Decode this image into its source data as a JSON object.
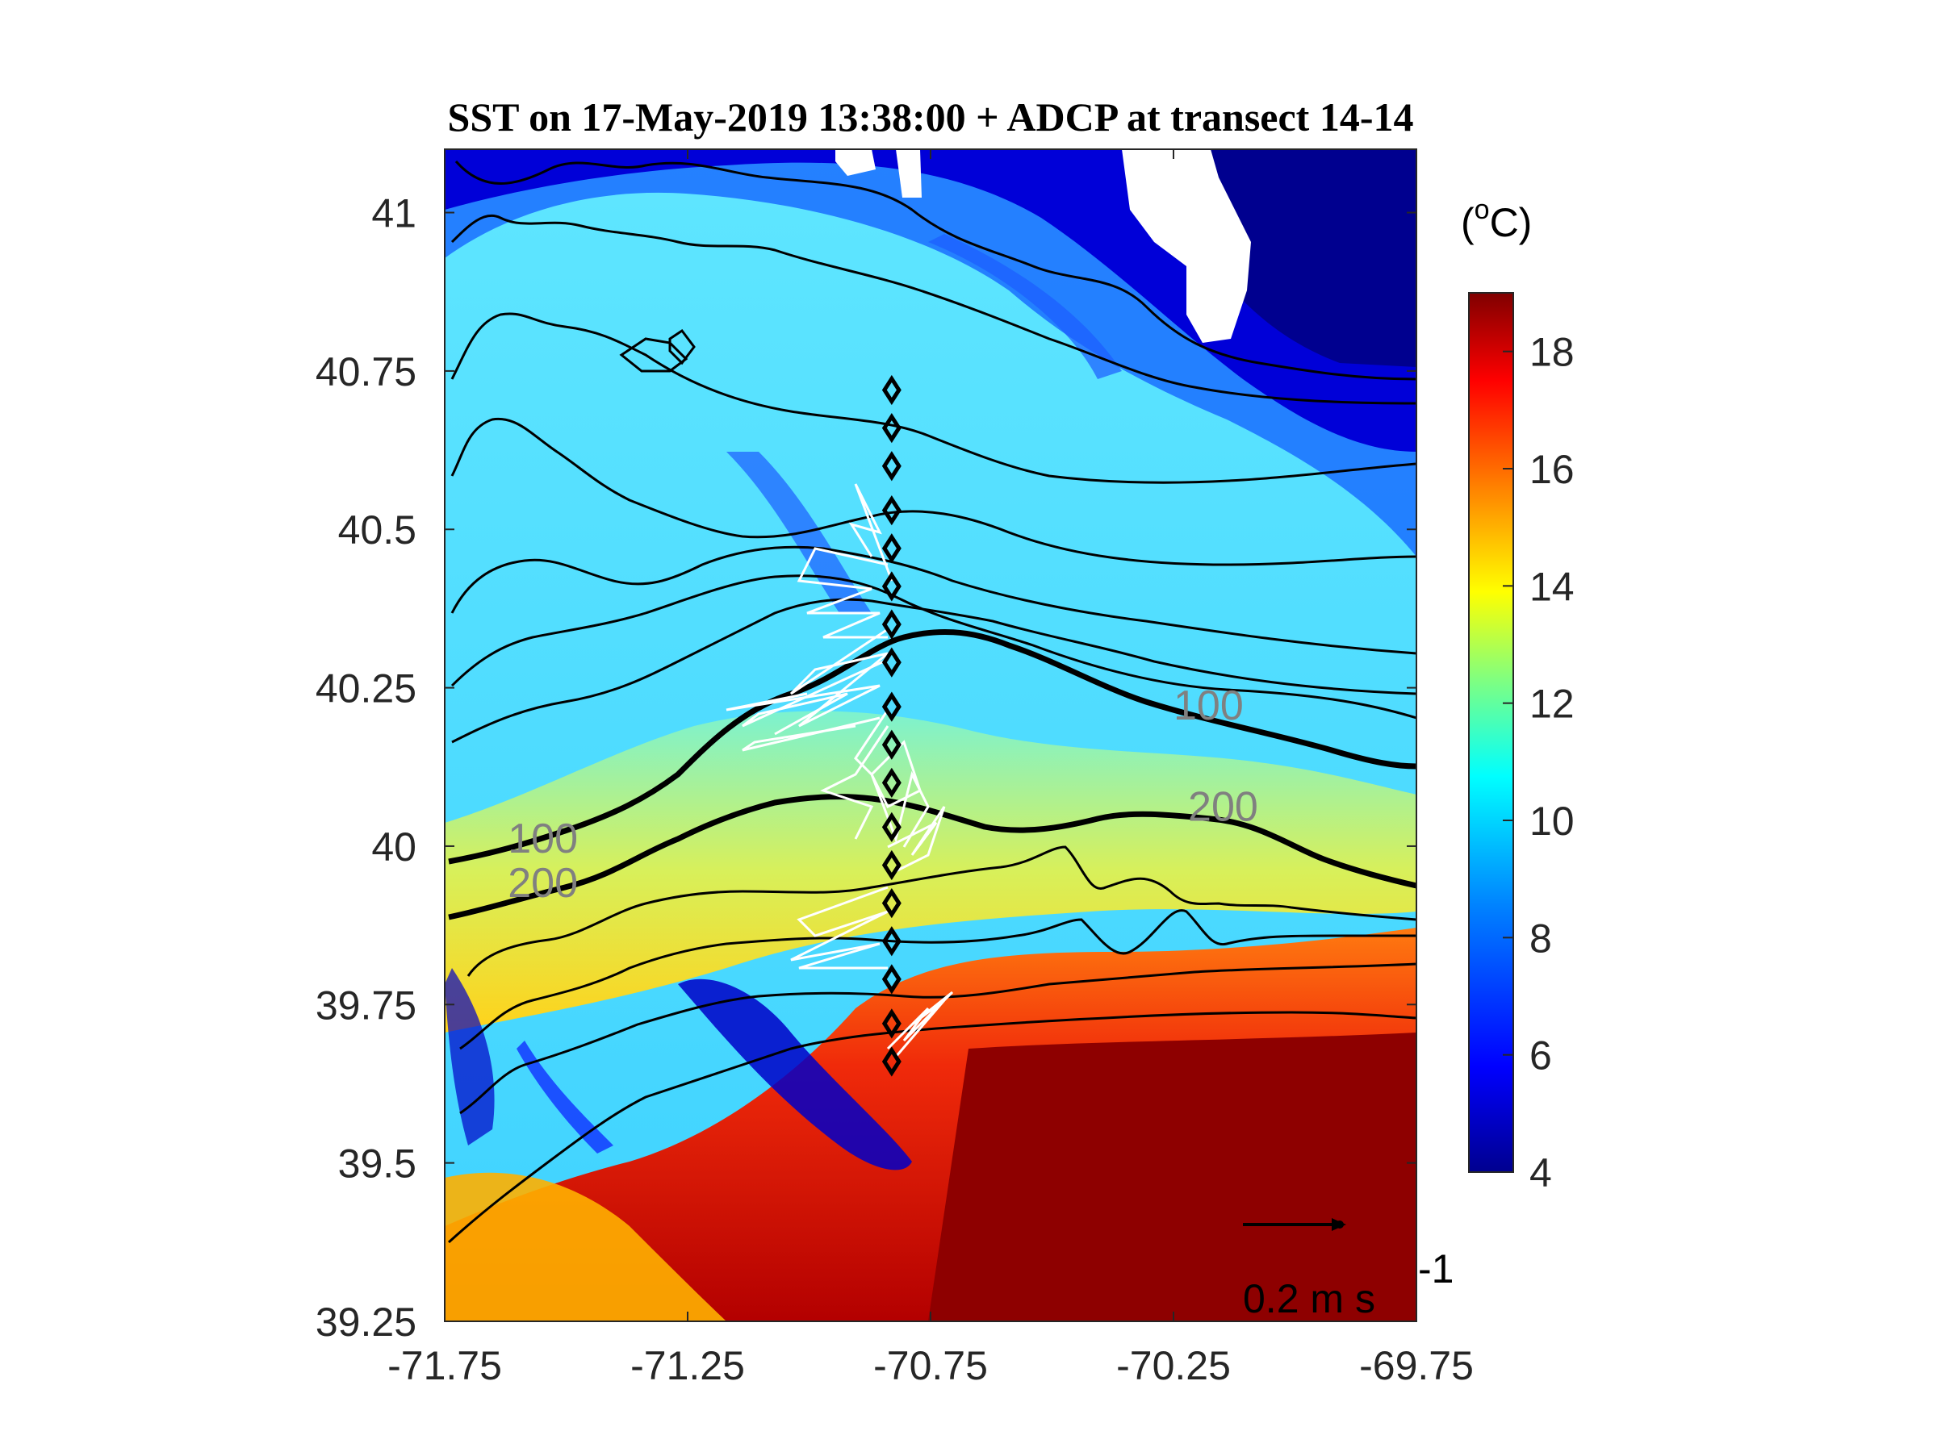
{
  "chart_data": {
    "type": "heatmap",
    "title": "SST on 17-May-2019 13:38:00 + ADCP at transect 14-14",
    "xlim": [
      -71.75,
      -69.75
    ],
    "ylim": [
      39.25,
      41.1
    ],
    "x_ticks": [
      "-71.75",
      "-71.25",
      "-70.75",
      "-70.25",
      "-69.75"
    ],
    "y_ticks": [
      "39.25",
      "39.5",
      "39.75",
      "40",
      "40.25",
      "40.5",
      "40.75",
      "41"
    ],
    "colorbar": {
      "label_prefix": "(",
      "label_sup": "o",
      "label_suffix": "C)",
      "range": [
        4,
        19
      ],
      "ticks": [
        "4",
        "6",
        "8",
        "10",
        "12",
        "14",
        "16",
        "18"
      ],
      "colormap": [
        "#00008f",
        "#0000ff",
        "#0080ff",
        "#00ffff",
        "#80ff80",
        "#ffff00",
        "#ff8000",
        "#ff0000",
        "#800000"
      ]
    },
    "isobath_labels": [
      {
        "text": "100",
        "lon": -71.62,
        "lat": 39.99
      },
      {
        "text": "200",
        "lon": -71.62,
        "lat": 39.92
      },
      {
        "text": "100",
        "lon": -70.25,
        "lat": 40.2
      },
      {
        "text": "200",
        "lon": -70.22,
        "lat": 40.04
      }
    ],
    "scale_vector": {
      "text": "0.2 m s",
      "exponent": "-1"
    },
    "stations": [
      {
        "lon": -70.83,
        "lat": 40.72
      },
      {
        "lon": -70.83,
        "lat": 40.66
      },
      {
        "lon": -70.83,
        "lat": 40.6
      },
      {
        "lon": -70.83,
        "lat": 40.53
      },
      {
        "lon": -70.83,
        "lat": 40.47
      },
      {
        "lon": -70.83,
        "lat": 40.41
      },
      {
        "lon": -70.83,
        "lat": 40.35
      },
      {
        "lon": -70.83,
        "lat": 40.29
      },
      {
        "lon": -70.83,
        "lat": 40.22
      },
      {
        "lon": -70.83,
        "lat": 40.16
      },
      {
        "lon": -70.83,
        "lat": 40.1
      },
      {
        "lon": -70.83,
        "lat": 40.03
      },
      {
        "lon": -70.83,
        "lat": 39.97
      },
      {
        "lon": -70.83,
        "lat": 39.91
      },
      {
        "lon": -70.83,
        "lat": 39.85
      },
      {
        "lon": -70.83,
        "lat": 39.79
      },
      {
        "lon": -70.83,
        "lat": 39.72
      },
      {
        "lon": -70.83,
        "lat": 39.66
      }
    ]
  },
  "colors": {
    "isobath": "#000000",
    "arrow": "#ffffff",
    "cloud_mask": "#ffffff"
  }
}
